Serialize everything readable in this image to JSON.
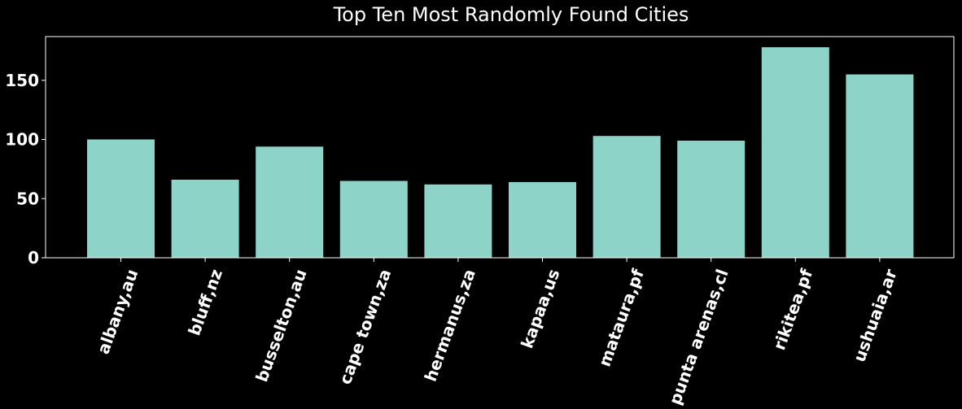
{
  "chart_data": {
    "type": "bar",
    "title": "Top Ten Most Randomly Found Cities",
    "xlabel": "",
    "ylabel": "",
    "categories": [
      "albany,au",
      "bluff,nz",
      "busselton,au",
      "cape town,za",
      "hermanus,za",
      "kapaa,us",
      "mataura,pf",
      "punta arenas,cl",
      "rikitea,pf",
      "ushuaia,ar"
    ],
    "values": [
      100,
      66,
      94,
      65,
      62,
      64,
      103,
      99,
      178,
      155
    ],
    "ylim": [
      0,
      187
    ],
    "yticks": [
      0,
      50,
      100,
      150
    ],
    "ytick_labels": [
      "0",
      "50",
      "100",
      "150"
    ],
    "grid": false,
    "colors": {
      "background": "#000000",
      "bar": "#8dd3c7",
      "text": "#ffffff",
      "axes": "#ffffff"
    }
  }
}
